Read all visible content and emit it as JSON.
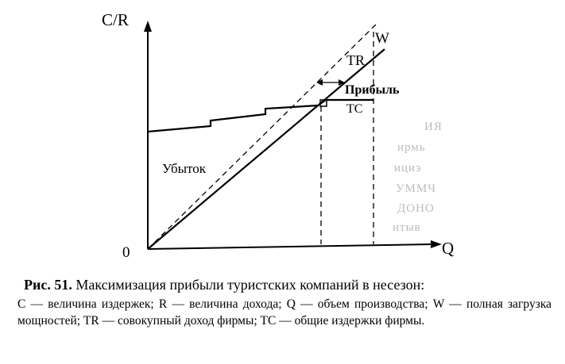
{
  "figure": {
    "axis_y_label": "C/R",
    "axis_x_label": "Q",
    "origin_label": "0",
    "labels": {
      "w": "W",
      "tr": "TR",
      "tc": "TC",
      "profit": "Прибыль",
      "loss": "Убыток"
    },
    "ghost_text": [
      "ИЯ",
      "ирмь",
      "ициэ",
      "УММЧ",
      "ДОНО",
      "итыв"
    ]
  },
  "caption": {
    "number": "Рис. 51.",
    "title": "Максимизация прибыли туристских компаний в несезон:",
    "legend": "С — величина издержек; R — величина дохода; Q — объем производства; W — полная загрузка мощностей; TR — совокупный доход фирмы; ТС — общие издержки фирмы."
  }
}
